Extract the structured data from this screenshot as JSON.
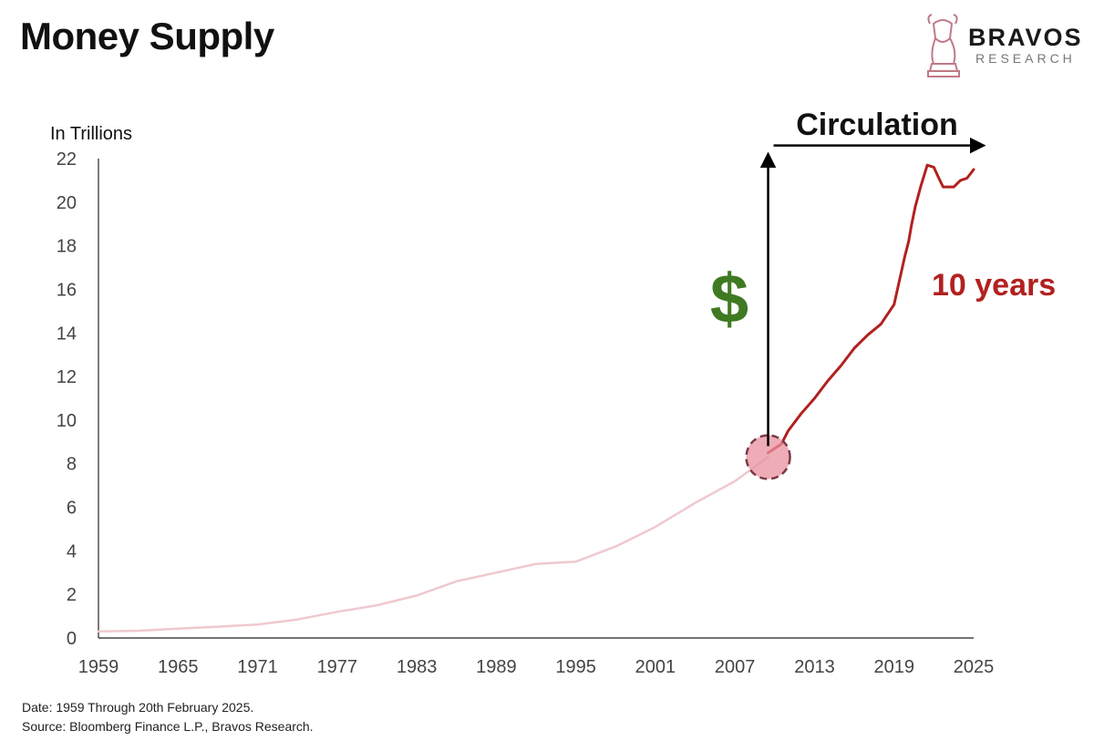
{
  "header": {
    "title": "Money Supply",
    "brand_name": "BRAVOS",
    "brand_sub": "RESEARCH",
    "logo_icon": "bull-chess-knight-icon"
  },
  "footer": {
    "date_note": "Date: 1959 Through 20th February 2025.",
    "source_note": "Source: Bloomberg Finance L.P., Bravos Research."
  },
  "chart_data": {
    "type": "line",
    "title": "Money Supply",
    "ylabel": "In Trillions",
    "xlabel": "",
    "xlim": [
      1959,
      2025
    ],
    "ylim": [
      0,
      22
    ],
    "x_ticks": [
      "1959",
      "1965",
      "1971",
      "1977",
      "1983",
      "1989",
      "1995",
      "2001",
      "2007",
      "2013",
      "2019",
      "2025"
    ],
    "y_ticks": [
      "0",
      "2",
      "4",
      "6",
      "8",
      "10",
      "12",
      "14",
      "16",
      "18",
      "20",
      "22"
    ],
    "grid": false,
    "series": [
      {
        "color": "#efc9cf",
        "x": [
          1959,
          1962,
          1965,
          1968,
          1971,
          1974,
          1977,
          1980,
          1983,
          1986,
          1989,
          1992,
          1995,
          1998,
          2001,
          2004,
          2007,
          2009.5
        ],
        "y": [
          0.3,
          0.33,
          0.43,
          0.52,
          0.62,
          0.85,
          1.2,
          1.5,
          1.95,
          2.6,
          3.0,
          3.4,
          3.5,
          4.2,
          5.1,
          6.2,
          7.2,
          8.3
        ]
      },
      {
        "color": "#b2211f",
        "x": [
          2009.5,
          2010.5,
          2011,
          2012,
          2013,
          2014,
          2015,
          2016,
          2017,
          2018,
          2019,
          2019.8,
          2020.1,
          2020.3,
          2020.6,
          2021,
          2021.5,
          2022,
          2022.3,
          2022.7,
          2023,
          2023.5,
          2024,
          2024.5,
          2025
        ],
        "y": [
          8.5,
          8.9,
          9.5,
          10.3,
          11.0,
          11.8,
          12.5,
          13.3,
          13.9,
          14.4,
          15.3,
          17.5,
          18.2,
          18.9,
          19.8,
          20.7,
          21.7,
          21.6,
          21.2,
          20.7,
          20.7,
          20.7,
          21.0,
          21.1,
          21.5
        ]
      }
    ],
    "annotations": {
      "dollar": {
        "text": "$",
        "color": "#3f7a22"
      },
      "circulation": {
        "text": "Circulation"
      },
      "years": {
        "text": "10 years",
        "color": "#b2211f"
      },
      "marker": {
        "x": 2009.5,
        "y": 8.3,
        "color": "#e8909f"
      }
    }
  }
}
